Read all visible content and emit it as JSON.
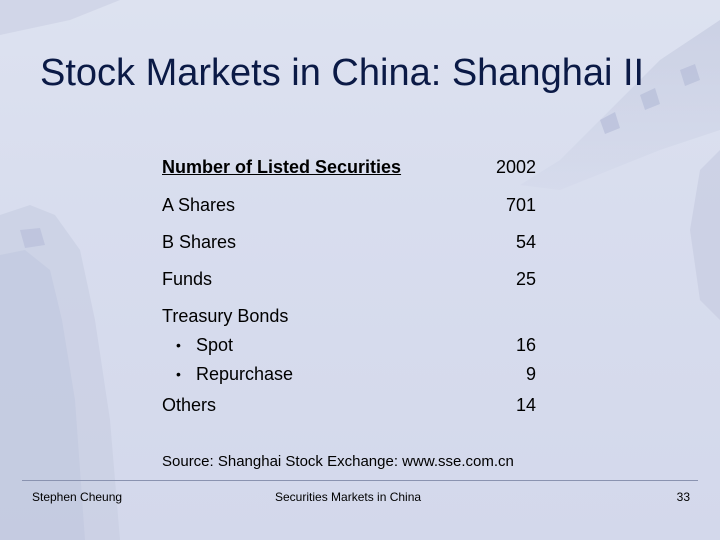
{
  "slide": {
    "title": "Stock Markets in China: Shanghai II",
    "table": {
      "header": {
        "label": "Number of Listed Securities",
        "year": "2002"
      },
      "rows": [
        {
          "label": "A Shares",
          "value": "701"
        },
        {
          "label": "B Shares",
          "value": "54"
        },
        {
          "label": "Funds",
          "value": "25"
        },
        {
          "label": "Treasury Bonds",
          "value": ""
        },
        {
          "label": "Spot",
          "value": "16"
        },
        {
          "label": "Repurchase",
          "value": "9"
        },
        {
          "label": "Others",
          "value": "14"
        }
      ]
    },
    "source": "Source: Shanghai Stock Exchange: www.sse.com.cn",
    "footer": {
      "author": "Stephen Cheung",
      "course": "Securities Markets in China",
      "page": "33"
    }
  }
}
